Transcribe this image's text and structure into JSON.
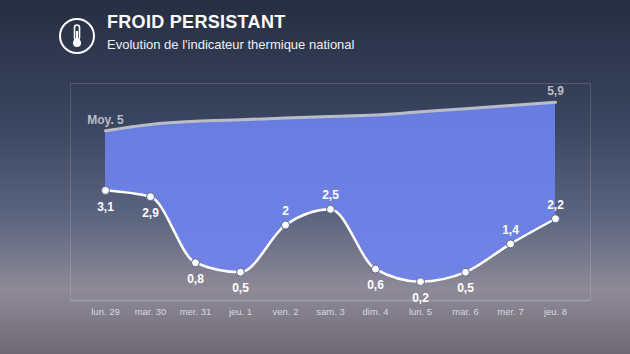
{
  "chart_data": {
    "type": "line",
    "title": "FROID PERSISTANT",
    "subtitle": "Evolution de l'indicateur thermique national",
    "categories": [
      "lun. 29",
      "mar. 30",
      "mer. 31",
      "jeu. 1",
      "ven. 2",
      "sam. 3",
      "dim. 4",
      "lun. 5",
      "mar. 6",
      "mer. 7",
      "jeu. 8"
    ],
    "series": [
      {
        "color": "#b9bdc7",
        "values": [
          5,
          5.2,
          5.3,
          5.35,
          5.4,
          5.45,
          5.5,
          5.6,
          5.7,
          5.8,
          5.9
        ],
        "value_labels": [
          "Moy. 5",
          null,
          null,
          null,
          null,
          null,
          null,
          null,
          null,
          null,
          "5,9"
        ]
      },
      {
        "color": "#ffffff",
        "marker": "circle",
        "values": [
          3.1,
          2.9,
          0.8,
          0.5,
          2,
          2.5,
          0.6,
          0.2,
          0.5,
          1.4,
          2.2
        ],
        "value_labels": [
          "3,1",
          "2,9",
          "0,8",
          "0,5",
          "2",
          "2,5",
          "0,6",
          "0,2",
          "0,5",
          "1,4",
          "2,2"
        ]
      }
    ],
    "ylim": [
      -0.4,
      6.5
    ],
    "yticks": [],
    "tick_labels": "x",
    "data_labels": true
  }
}
